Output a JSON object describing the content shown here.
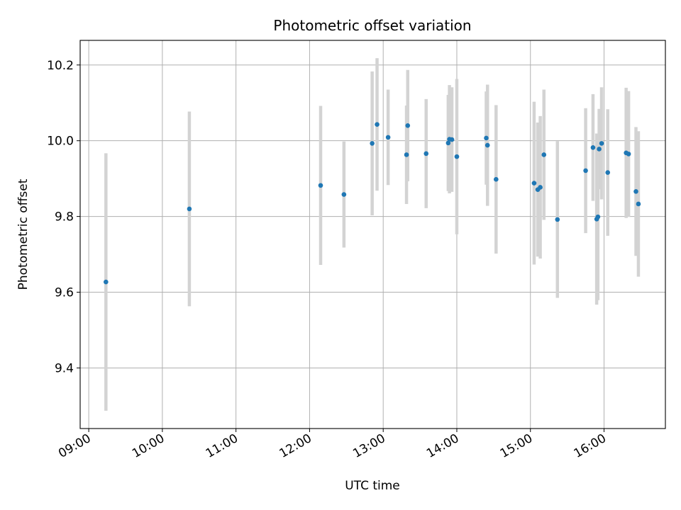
{
  "chart_data": {
    "type": "scatter",
    "title": "Photometric offset variation",
    "xlabel": "UTC time",
    "ylabel": "Photometric offset",
    "x_ticks": [
      "09:00",
      "10:00",
      "11:00",
      "12:00",
      "13:00",
      "14:00",
      "15:00",
      "16:00"
    ],
    "y_ticks": [
      "9.4",
      "9.6",
      "9.8",
      "10.0",
      "10.2"
    ],
    "xlim": [
      "08:53",
      "16:50"
    ],
    "ylim": [
      9.24,
      10.265
    ],
    "grid": true,
    "colors": {
      "point": "#1f77b4",
      "errorbar": "#d3d3d3",
      "grid": "#b0b0b0"
    },
    "series": [
      {
        "points": [
          {
            "x": "09:14",
            "y": 9.627,
            "err": 0.34
          },
          {
            "x": "10:22",
            "y": 9.82,
            "err": 0.257
          },
          {
            "x": "12:09",
            "y": 9.882,
            "err": 0.21
          },
          {
            "x": "12:28",
            "y": 9.858,
            "err": 0.14
          },
          {
            "x": "12:51",
            "y": 9.993,
            "err": 0.19
          },
          {
            "x": "12:55",
            "y": 10.043,
            "err": 0.175
          },
          {
            "x": "13:04",
            "y": 10.009,
            "err": 0.126
          },
          {
            "x": "13:19",
            "y": 9.963,
            "err": 0.13
          },
          {
            "x": "13:20",
            "y": 10.04,
            "err": 0.147
          },
          {
            "x": "13:35",
            "y": 9.966,
            "err": 0.144
          },
          {
            "x": "13:53",
            "y": 9.994,
            "err": 0.127
          },
          {
            "x": "13:54",
            "y": 10.004,
            "err": 0.143
          },
          {
            "x": "13:56",
            "y": 10.003,
            "err": 0.138
          },
          {
            "x": "14:00",
            "y": 9.958,
            "err": 0.205
          },
          {
            "x": "14:24",
            "y": 10.007,
            "err": 0.123
          },
          {
            "x": "14:25",
            "y": 9.988,
            "err": 0.16
          },
          {
            "x": "14:32",
            "y": 9.898,
            "err": 0.196
          },
          {
            "x": "15:03",
            "y": 9.888,
            "err": 0.215
          },
          {
            "x": "15:06",
            "y": 9.871,
            "err": 0.177
          },
          {
            "x": "15:08",
            "y": 9.877,
            "err": 0.188
          },
          {
            "x": "15:11",
            "y": 9.963,
            "err": 0.172
          },
          {
            "x": "15:22",
            "y": 9.792,
            "err": 0.207
          },
          {
            "x": "15:45",
            "y": 9.921,
            "err": 0.165
          },
          {
            "x": "15:51",
            "y": 9.982,
            "err": 0.141
          },
          {
            "x": "15:54",
            "y": 9.793,
            "err": 0.226
          },
          {
            "x": "15:55",
            "y": 9.799,
            "err": 0.22
          },
          {
            "x": "15:56",
            "y": 9.978,
            "err": 0.106
          },
          {
            "x": "15:58",
            "y": 9.993,
            "err": 0.148
          },
          {
            "x": "16:03",
            "y": 9.916,
            "err": 0.167
          },
          {
            "x": "16:18",
            "y": 9.968,
            "err": 0.172
          },
          {
            "x": "16:20",
            "y": 9.965,
            "err": 0.166
          },
          {
            "x": "16:26",
            "y": 9.866,
            "err": 0.17
          },
          {
            "x": "16:28",
            "y": 9.833,
            "err": 0.192
          }
        ]
      }
    ]
  }
}
